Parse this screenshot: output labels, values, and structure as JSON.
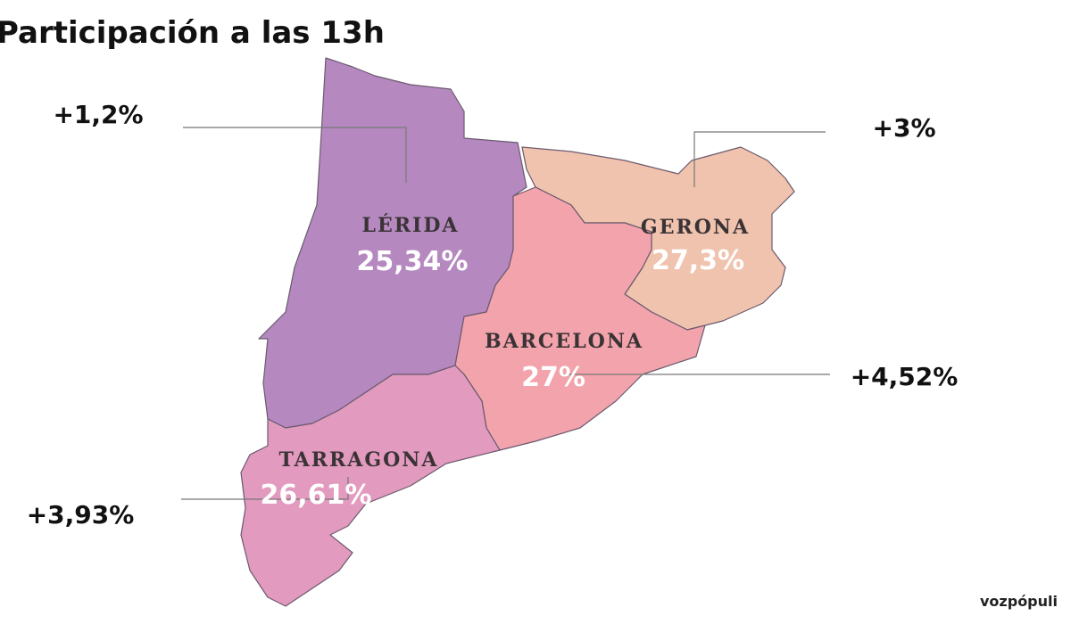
{
  "title": "Participación a las 13h",
  "regions": [
    {
      "name": "LÉRIDA",
      "participation": "25,34%",
      "change": "+1,2%"
    },
    {
      "name": "GERONA",
      "participation": "27,3%",
      "change": "+3%"
    },
    {
      "name": "BARCELONA",
      "participation": "27%",
      "change": "+4,52%"
    },
    {
      "name": "TARRAGONA",
      "participation": "26,61%",
      "change": "+3,93%"
    }
  ],
  "logo": "vozpópuli"
}
